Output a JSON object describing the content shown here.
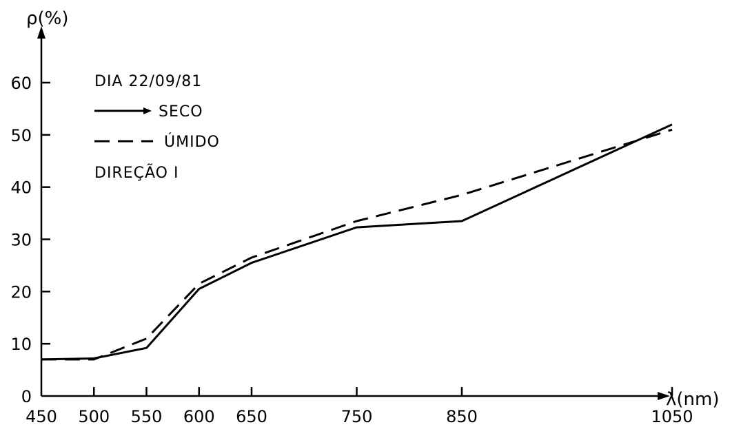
{
  "chart_data": {
    "type": "line",
    "title": "",
    "ylabel": "ρ(%)",
    "xlabel": "λ(nm)",
    "xlim": [
      450,
      1050
    ],
    "ylim": [
      0,
      65
    ],
    "x_ticks": [
      450,
      500,
      550,
      600,
      650,
      750,
      850,
      1050
    ],
    "y_ticks": [
      0,
      10,
      20,
      30,
      40,
      50,
      60
    ],
    "grid": false,
    "legend": {
      "heading": "DIA 22/09/81",
      "footer": "DIREÇÃO I",
      "placement": "top-left"
    },
    "x": [
      450,
      500,
      550,
      600,
      650,
      750,
      850,
      1050
    ],
    "series": [
      {
        "name": "SECO",
        "style": "solid",
        "values": [
          7,
          7.2,
          9.2,
          20.5,
          25.5,
          32.3,
          33.5,
          52
        ]
      },
      {
        "name": "ÚMIDO",
        "style": "dashed",
        "values": [
          7,
          7,
          11,
          21.5,
          26.5,
          33.5,
          38.5,
          51
        ]
      }
    ]
  }
}
